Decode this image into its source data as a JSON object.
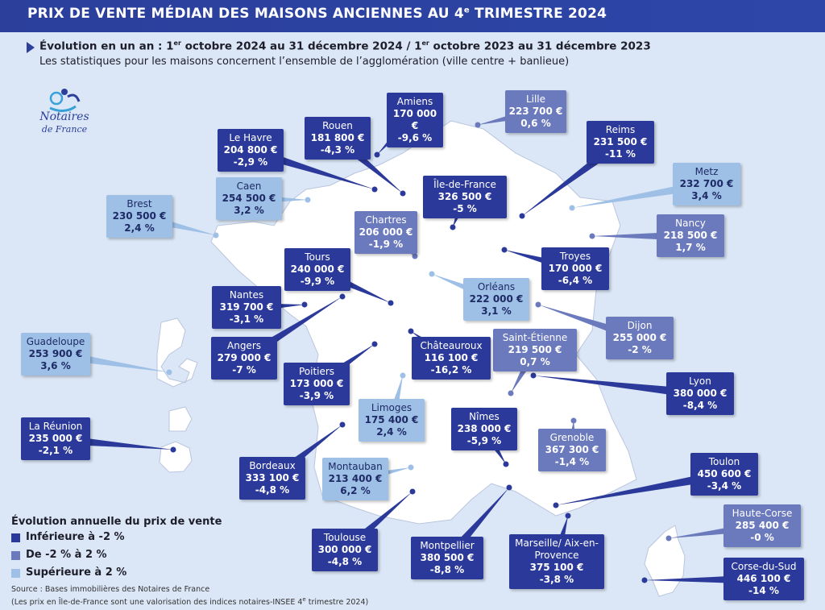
{
  "header": {
    "title_part1": "PRIX DE VENTE MÉDIAN DES MAISONS ANCIENNES AU 4",
    "title_sup": "e",
    "title_part2": " TRIMESTRE 2024"
  },
  "subtitle": {
    "p1": "Évolution en un an : 1",
    "sup1": "er",
    "p2": " octobre 2024 au 31 décembre 2024 / 1",
    "sup2": "er",
    "p3": " octobre 2023 au 31 décembre 2023",
    "note": "Les statistiques pour les maisons concernent l’ensemble de l’agglomération (ville centre + banlieue)"
  },
  "logo": {
    "line1": "Notaires",
    "line2": "de France"
  },
  "colors": {
    "low": "#2b3a9a",
    "mid": "#6b79bd",
    "high": "#9ec0e6",
    "land": "#ffffff",
    "sea": "#dbe7f6"
  },
  "cities": [
    {
      "id": "amiens",
      "city": "Amiens",
      "price": "170 000 €",
      "change": "-9,6 %",
      "cat": "low"
    },
    {
      "id": "lille",
      "city": "Lille",
      "price": "223 700 €",
      "change": "0,6 %",
      "cat": "mid"
    },
    {
      "id": "rouen",
      "city": "Rouen",
      "price": "181 800 €",
      "change": "-4,3 %",
      "cat": "low"
    },
    {
      "id": "lehavre",
      "city": "Le Havre",
      "price": "204 800 €",
      "change": "-2,9 %",
      "cat": "low"
    },
    {
      "id": "reims",
      "city": "Reims",
      "price": "231 500 €",
      "change": "-11 %",
      "cat": "low"
    },
    {
      "id": "metz",
      "city": "Metz",
      "price": "232 700 €",
      "change": "3,4 %",
      "cat": "high"
    },
    {
      "id": "caen",
      "city": "Caen",
      "price": "254 500 €",
      "change": "3,2 %",
      "cat": "high"
    },
    {
      "id": "idf",
      "city": "Île-de-France",
      "price": "326 500 €",
      "change": "-5 %",
      "cat": "low"
    },
    {
      "id": "brest",
      "city": "Brest",
      "price": "230 500 €",
      "change": "2,4 %",
      "cat": "high"
    },
    {
      "id": "chartres",
      "city": "Chartres",
      "price": "206 000 €",
      "change": "-1,9 %",
      "cat": "mid"
    },
    {
      "id": "nancy",
      "city": "Nancy",
      "price": "218 500 €",
      "change": "1,7 %",
      "cat": "mid"
    },
    {
      "id": "tours",
      "city": "Tours",
      "price": "240 000 €",
      "change": "-9,9 %",
      "cat": "low"
    },
    {
      "id": "troyes",
      "city": "Troyes",
      "price": "170 000 €",
      "change": "-6,4 %",
      "cat": "low"
    },
    {
      "id": "nantes",
      "city": "Nantes",
      "price": "319 700 €",
      "change": "-3,1 %",
      "cat": "low"
    },
    {
      "id": "orleans",
      "city": "Orléans",
      "price": "222 000 €",
      "change": "3,1 %",
      "cat": "high"
    },
    {
      "id": "dijon",
      "city": "Dijon",
      "price": "255 000 €",
      "change": "-2 %",
      "cat": "mid"
    },
    {
      "id": "guadeloupe",
      "city": "Guadeloupe",
      "price": "253 900 €",
      "change": "3,6 %",
      "cat": "high"
    },
    {
      "id": "stetienne",
      "city": "Saint-Étienne",
      "price": "219 500 €",
      "change": "0,7 %",
      "cat": "mid"
    },
    {
      "id": "angers",
      "city": "Angers",
      "price": "279 000 €",
      "change": "-7 %",
      "cat": "low"
    },
    {
      "id": "chateauroux",
      "city": "Châteauroux",
      "price": "116 100 €",
      "change": "-16,2 %",
      "cat": "low"
    },
    {
      "id": "poitiers",
      "city": "Poitiers",
      "price": "173 000 €",
      "change": "-3,9 %",
      "cat": "low"
    },
    {
      "id": "lyon",
      "city": "Lyon",
      "price": "380 000 €",
      "change": "-8,4 %",
      "cat": "low"
    },
    {
      "id": "limoges",
      "city": "Limoges",
      "price": "175 400 €",
      "change": "2,4 %",
      "cat": "high"
    },
    {
      "id": "reunion",
      "city": "La Réunion",
      "price": "235 000 €",
      "change": "-2,1 %",
      "cat": "low"
    },
    {
      "id": "nimes",
      "city": "Nîmes",
      "price": "238 000 €",
      "change": "-5,9 %",
      "cat": "low"
    },
    {
      "id": "grenoble",
      "city": "Grenoble",
      "price": "367 300 €",
      "change": "-1,4 %",
      "cat": "mid"
    },
    {
      "id": "bordeaux",
      "city": "Bordeaux",
      "price": "333 100 €",
      "change": "-4,8 %",
      "cat": "low"
    },
    {
      "id": "montauban",
      "city": "Montauban",
      "price": "213 400 €",
      "change": "6,2 %",
      "cat": "high"
    },
    {
      "id": "toulon",
      "city": "Toulon",
      "price": "450 600 €",
      "change": "-3,4 %",
      "cat": "low"
    },
    {
      "id": "hautecorse",
      "city": "Haute-Corse",
      "price": "285 400 €",
      "change": "-0 %",
      "cat": "mid"
    },
    {
      "id": "toulouse",
      "city": "Toulouse",
      "price": "300 000 €",
      "change": "-4,8 %",
      "cat": "low"
    },
    {
      "id": "montpellier",
      "city": "Montpellier",
      "price": "380 500 €",
      "change": "-8,8 %",
      "cat": "low"
    },
    {
      "id": "marseille",
      "city": "Marseille/ Aix-en-Provence",
      "price": "375 100 €",
      "change": "-3,8 %",
      "cat": "low"
    },
    {
      "id": "corsesud",
      "city": "Corse-du-Sud",
      "price": "446 100 €",
      "change": "-14 %",
      "cat": "low"
    }
  ],
  "legend": {
    "title": "Évolution annuelle du prix de vente",
    "items": [
      {
        "label": "Inférieure à -2 %",
        "cat": "low"
      },
      {
        "label": "De -2 % à 2 %",
        "cat": "mid"
      },
      {
        "label": "Supérieure à 2 %",
        "cat": "high"
      }
    ]
  },
  "source": {
    "line1": "Source : Bases immobilières des Notaires de France",
    "line2a": "(Les prix en Île-de-France sont une valorisation des indices notaires-INSEE 4",
    "line2sup": "e",
    "line2b": " trimestre 2024)"
  }
}
